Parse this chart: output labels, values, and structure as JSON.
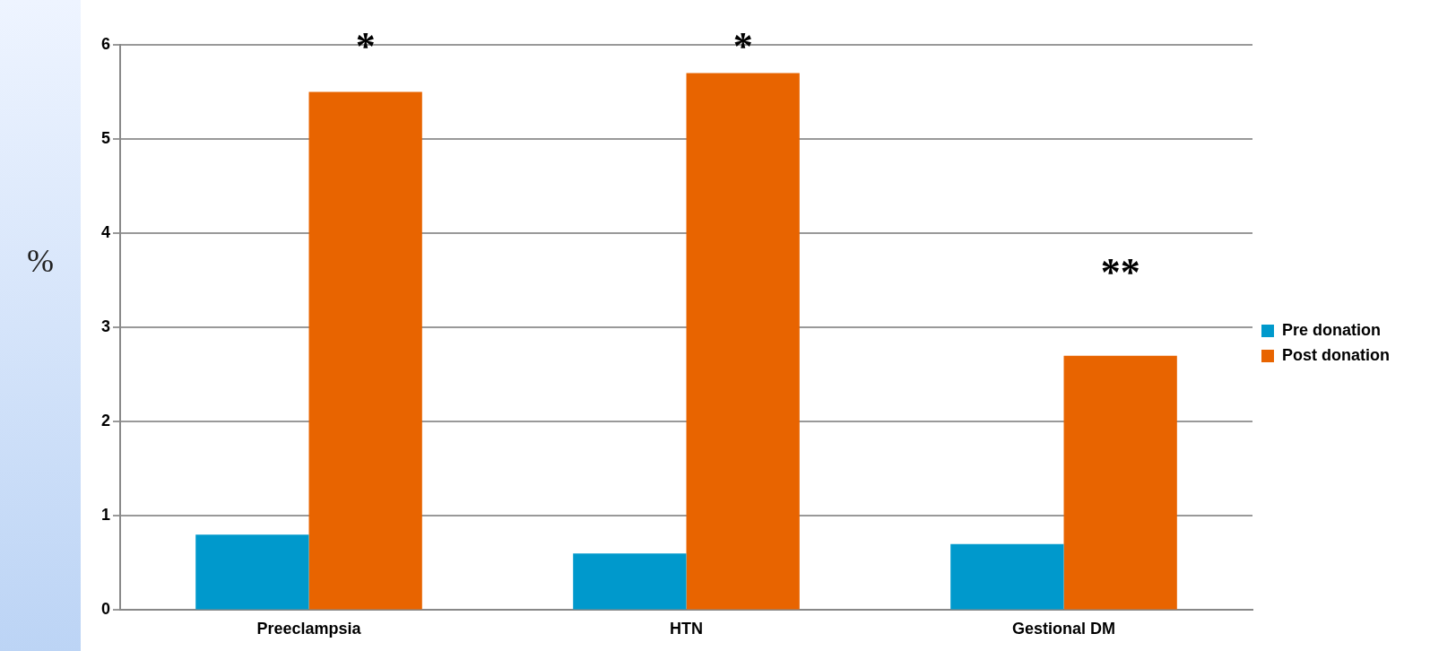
{
  "chart_data": {
    "type": "bar",
    "categories": [
      "Preeclampsia",
      "HTN",
      "Gestional DM"
    ],
    "series": [
      {
        "name": "Pre donation",
        "color": "#0099cc",
        "values": [
          0.8,
          0.6,
          0.7
        ]
      },
      {
        "name": "Post donation",
        "color": "#e86400",
        "values": [
          5.5,
          5.7,
          2.7
        ]
      }
    ],
    "ylabel": "%",
    "ylim": [
      0,
      6
    ],
    "yticks": [
      0,
      1,
      2,
      3,
      4,
      5,
      6
    ],
    "grid": "y",
    "legend": "right",
    "annotations": [
      "*",
      "*",
      "**"
    ]
  }
}
